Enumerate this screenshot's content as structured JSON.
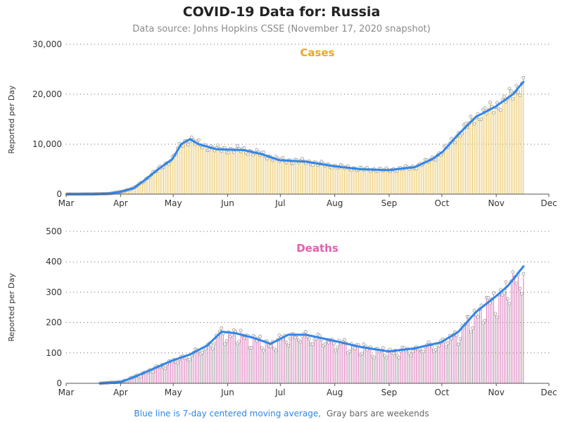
{
  "title": "COVID-19 Data for: Russia",
  "subtitle": "Data source: Johns Hopkins CSSE (November 17, 2020 snapshot)",
  "footnote": {
    "blue": "Blue line is 7-day centered moving average,",
    "gray": "Gray bars are weekends"
  },
  "colors": {
    "cases": "#e8a824",
    "deaths": "#e060b0",
    "cases_bar": "#e8c35a",
    "deaths_bar": "#d978b9",
    "weekend_bar": "#9a9a9a",
    "ma_line": "#2f86e8",
    "foot_blue": "#2f86e8",
    "foot_gray": "#666666",
    "grid": "#666666"
  },
  "chart_data": [
    {
      "type": "bar",
      "panel_title": "Cases",
      "ylabel": "Reported per Day",
      "ylim": [
        0,
        30000
      ],
      "yticks": [
        "0",
        "10,000",
        "20,000",
        "30,000"
      ],
      "xticks": [
        "Mar",
        "Apr",
        "May",
        "Jun",
        "Jul",
        "Aug",
        "Sep",
        "Oct",
        "Nov",
        "Dec"
      ],
      "grid": true,
      "keypoints": [
        [
          "2020-03-01",
          0
        ],
        [
          "2020-03-15",
          10
        ],
        [
          "2020-03-25",
          100
        ],
        [
          "2020-04-01",
          500
        ],
        [
          "2020-04-08",
          1200
        ],
        [
          "2020-04-15",
          3000
        ],
        [
          "2020-04-22",
          5000
        ],
        [
          "2020-04-30",
          7000
        ],
        [
          "2020-05-05",
          10000
        ],
        [
          "2020-05-10",
          11000
        ],
        [
          "2020-05-15",
          10000
        ],
        [
          "2020-05-25",
          9000
        ],
        [
          "2020-06-10",
          8800
        ],
        [
          "2020-06-20",
          8000
        ],
        [
          "2020-06-30",
          6800
        ],
        [
          "2020-07-15",
          6500
        ],
        [
          "2020-07-31",
          5600
        ],
        [
          "2020-08-15",
          5000
        ],
        [
          "2020-08-31",
          4800
        ],
        [
          "2020-09-15",
          5400
        ],
        [
          "2020-09-25",
          7000
        ],
        [
          "2020-10-01",
          8500
        ],
        [
          "2020-10-10",
          12000
        ],
        [
          "2020-10-20",
          15500
        ],
        [
          "2020-10-31",
          17500
        ],
        [
          "2020-11-10",
          20000
        ],
        [
          "2020-11-16",
          22500
        ]
      ],
      "weekend_bars": false,
      "ma": "7-day centered moving average"
    },
    {
      "type": "bar",
      "panel_title": "Deaths",
      "ylabel": "Reported per Day",
      "ylim": [
        0,
        500
      ],
      "yticks": [
        "0",
        "100",
        "200",
        "300",
        "400",
        "500"
      ],
      "xticks": [
        "Mar",
        "Apr",
        "May",
        "Jun",
        "Jul",
        "Aug",
        "Sep",
        "Oct",
        "Nov",
        "Dec"
      ],
      "grid": true,
      "keypoints": [
        [
          "2020-03-20",
          0
        ],
        [
          "2020-04-01",
          5
        ],
        [
          "2020-04-10",
          25
        ],
        [
          "2020-04-20",
          50
        ],
        [
          "2020-04-30",
          75
        ],
        [
          "2020-05-10",
          95
        ],
        [
          "2020-05-20",
          125
        ],
        [
          "2020-05-28",
          170
        ],
        [
          "2020-06-05",
          165
        ],
        [
          "2020-06-15",
          150
        ],
        [
          "2020-06-25",
          130
        ],
        [
          "2020-07-05",
          160
        ],
        [
          "2020-07-15",
          160
        ],
        [
          "2020-07-31",
          140
        ],
        [
          "2020-08-15",
          120
        ],
        [
          "2020-08-31",
          105
        ],
        [
          "2020-09-15",
          115
        ],
        [
          "2020-09-30",
          135
        ],
        [
          "2020-10-10",
          170
        ],
        [
          "2020-10-20",
          235
        ],
        [
          "2020-10-31",
          285
        ],
        [
          "2020-11-07",
          320
        ],
        [
          "2020-11-16",
          385
        ]
      ],
      "weekend_bars": true,
      "ma": "7-day centered moving average"
    }
  ]
}
